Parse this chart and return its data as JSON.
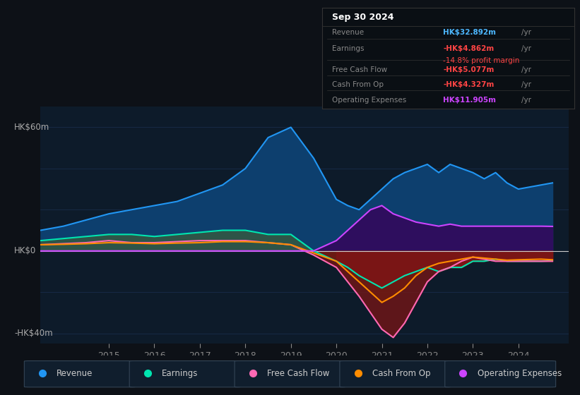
{
  "bg_color": "#0d1117",
  "plot_bg_color": "#0d1b2a",
  "ylabel_top": "HK$60m",
  "ylabel_zero": "HK$0",
  "ylabel_bot": "-HK$40m",
  "ylim": [
    -45,
    70
  ],
  "years": [
    2013.5,
    2014,
    2014.5,
    2015,
    2015.5,
    2016,
    2016.5,
    2017,
    2017.5,
    2018,
    2018.5,
    2019,
    2019.5,
    2020,
    2020.25,
    2020.5,
    2020.75,
    2021,
    2021.25,
    2021.5,
    2021.75,
    2022,
    2022.25,
    2022.5,
    2022.75,
    2023,
    2023.25,
    2023.5,
    2023.75,
    2024,
    2024.5,
    2024.75
  ],
  "revenue": [
    10,
    12,
    15,
    18,
    20,
    22,
    24,
    28,
    32,
    40,
    55,
    60,
    45,
    25,
    22,
    20,
    25,
    30,
    35,
    38,
    40,
    42,
    38,
    42,
    40,
    38,
    35,
    38,
    33,
    30,
    32,
    33
  ],
  "earnings": [
    5,
    6,
    7,
    8,
    8,
    7,
    8,
    9,
    10,
    10,
    8,
    8,
    0,
    -5,
    -8,
    -12,
    -15,
    -18,
    -15,
    -12,
    -10,
    -8,
    -10,
    -8,
    -8,
    -5,
    -5,
    -4,
    -5,
    -5,
    -5,
    -4.8
  ],
  "free_cash_flow": [
    3,
    3.5,
    4,
    5,
    4,
    4,
    4.5,
    5,
    5,
    5,
    4,
    3,
    -2,
    -8,
    -15,
    -22,
    -30,
    -38,
    -42,
    -35,
    -25,
    -15,
    -10,
    -8,
    -5,
    -3,
    -4,
    -5,
    -5,
    -5,
    -5,
    -5
  ],
  "cash_from_op": [
    3,
    3.2,
    3.5,
    4,
    3.8,
    3.5,
    3.8,
    4,
    4.5,
    4.5,
    4,
    3,
    -1,
    -5,
    -10,
    -15,
    -20,
    -25,
    -22,
    -18,
    -12,
    -8,
    -6,
    -5,
    -4,
    -3,
    -3.5,
    -4,
    -4.5,
    -4.3,
    -4,
    -4.3
  ],
  "op_expenses": [
    0,
    0,
    0,
    0,
    0,
    0,
    0,
    0,
    0,
    0,
    0,
    0,
    0,
    5,
    10,
    15,
    20,
    22,
    18,
    16,
    14,
    13,
    12,
    13,
    12,
    12,
    12,
    12,
    12,
    12,
    12,
    11.9
  ],
  "colors": {
    "revenue": "#2196f3",
    "revenue_fill": "#0d3f6e",
    "earnings": "#00e5b0",
    "earnings_fill_pos": "#2e5448",
    "earnings_fill_neg": "#7a1515",
    "free_cash_flow": "#ff69b4",
    "free_cash_flow_fill": "#7a1515",
    "cash_from_op": "#ff8c00",
    "cash_from_op_fill": "#5a3000",
    "op_expenses": "#cc44ff",
    "op_expenses_fill": "#2e0e5e"
  },
  "legend_items": [
    {
      "label": "Revenue",
      "color": "#2196f3"
    },
    {
      "label": "Earnings",
      "color": "#00e5b0"
    },
    {
      "label": "Free Cash Flow",
      "color": "#ff69b4"
    },
    {
      "label": "Cash From Op",
      "color": "#ff8c00"
    },
    {
      "label": "Operating Expenses",
      "color": "#cc44ff"
    }
  ],
  "grid_color": "#1a3050",
  "zero_line_color": "#cccccc",
  "xticks": [
    2015,
    2016,
    2017,
    2018,
    2019,
    2020,
    2021,
    2022,
    2023,
    2024
  ],
  "table_rows": [
    {
      "label": "Revenue",
      "value": "HK$32.892m",
      "vcolor": "#4db8ff",
      "sub": null,
      "scolor": null
    },
    {
      "label": "Earnings",
      "value": "-HK$4.862m",
      "vcolor": "#ff4444",
      "sub": "-14.8% profit margin",
      "scolor": "#ff4444"
    },
    {
      "label": "Free Cash Flow",
      "value": "-HK$5.077m",
      "vcolor": "#ff4444",
      "sub": null,
      "scolor": null
    },
    {
      "label": "Cash From Op",
      "value": "-HK$4.327m",
      "vcolor": "#ff4444",
      "sub": null,
      "scolor": null
    },
    {
      "label": "Operating Expenses",
      "value": "HK$11.905m",
      "vcolor": "#cc44ff",
      "sub": null,
      "scolor": null
    }
  ]
}
